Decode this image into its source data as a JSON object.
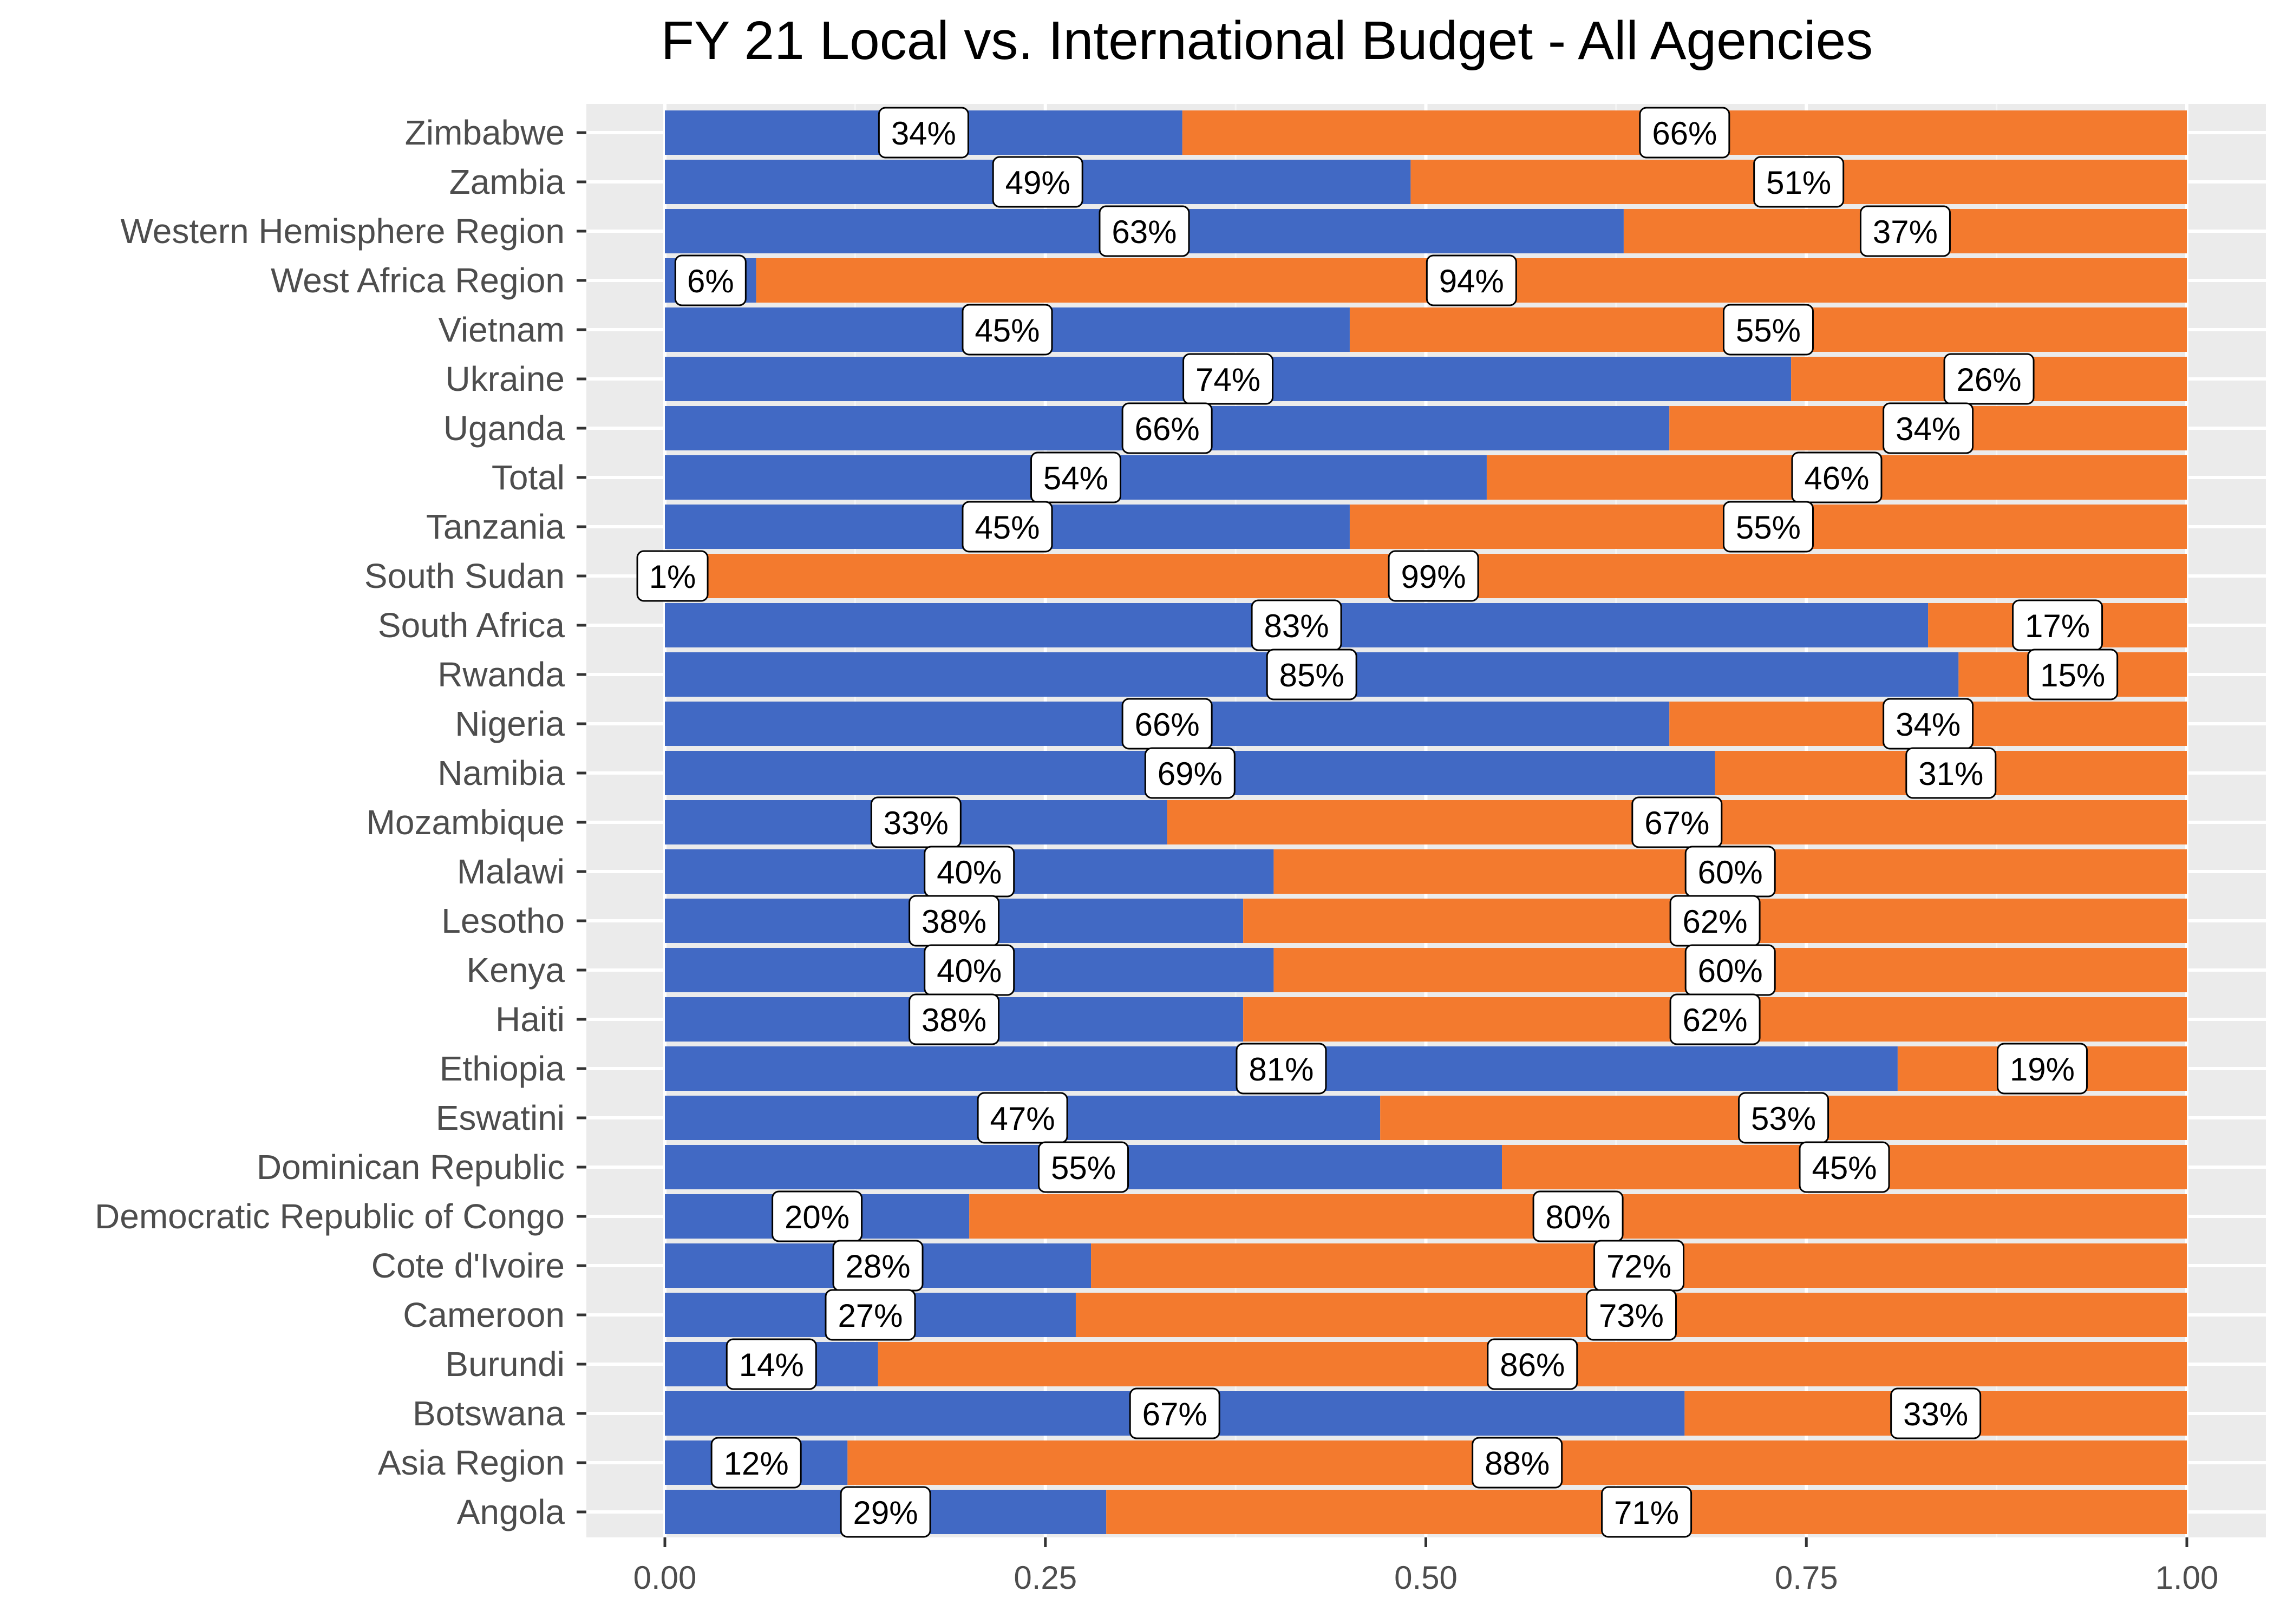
{
  "chart_data": {
    "type": "bar",
    "orientation": "horizontal",
    "stacked": true,
    "title": "FY 21 Local vs. International Budget - All Agencies",
    "xlabel": "",
    "ylabel": "",
    "xlim": [
      0,
      1
    ],
    "xticks": [
      0,
      0.25,
      0.5,
      0.75,
      1
    ],
    "xtick_labels": [
      "0.00",
      "0.25",
      "0.50",
      "0.75",
      "1.00"
    ],
    "grid": true,
    "legend": "none",
    "categories": [
      "Zimbabwe",
      "Zambia",
      "Western Hemisphere Region",
      "West Africa Region",
      "Vietnam",
      "Ukraine",
      "Uganda",
      "Total",
      "Tanzania",
      "South Sudan",
      "South Africa",
      "Rwanda",
      "Nigeria",
      "Namibia",
      "Mozambique",
      "Malawi",
      "Lesotho",
      "Kenya",
      "Haiti",
      "Ethiopia",
      "Eswatini",
      "Dominican Republic",
      "Democratic Republic of Congo",
      "Cote d'Ivoire",
      "Cameroon",
      "Burundi",
      "Botswana",
      "Asia Region",
      "Angola"
    ],
    "series": [
      {
        "color": "#4169C4",
        "values": [
          0.34,
          0.49,
          0.63,
          0.06,
          0.45,
          0.74,
          0.66,
          0.54,
          0.45,
          0.01,
          0.83,
          0.85,
          0.66,
          0.69,
          0.33,
          0.4,
          0.38,
          0.4,
          0.38,
          0.81,
          0.47,
          0.55,
          0.2,
          0.28,
          0.27,
          0.14,
          0.67,
          0.12,
          0.29
        ],
        "labels": [
          "34%",
          "49%",
          "63%",
          "6%",
          "45%",
          "74%",
          "66%",
          "54%",
          "45%",
          "1%",
          "83%",
          "85%",
          "66%",
          "69%",
          "33%",
          "40%",
          "38%",
          "40%",
          "38%",
          "81%",
          "47%",
          "55%",
          "20%",
          "28%",
          "27%",
          "14%",
          "67%",
          "12%",
          "29%"
        ]
      },
      {
        "color": "#F37A2E",
        "values": [
          0.66,
          0.51,
          0.37,
          0.94,
          0.55,
          0.26,
          0.34,
          0.46,
          0.55,
          0.99,
          0.17,
          0.15,
          0.34,
          0.31,
          0.67,
          0.6,
          0.62,
          0.6,
          0.62,
          0.19,
          0.53,
          0.45,
          0.8,
          0.72,
          0.73,
          0.86,
          0.33,
          0.88,
          0.71
        ],
        "labels": [
          "66%",
          "51%",
          "37%",
          "94%",
          "55%",
          "26%",
          "34%",
          "46%",
          "55%",
          "99%",
          "17%",
          "15%",
          "34%",
          "31%",
          "67%",
          "60%",
          "62%",
          "60%",
          "62%",
          "19%",
          "53%",
          "45%",
          "80%",
          "72%",
          "73%",
          "86%",
          "33%",
          "88%",
          "71%"
        ]
      }
    ]
  }
}
